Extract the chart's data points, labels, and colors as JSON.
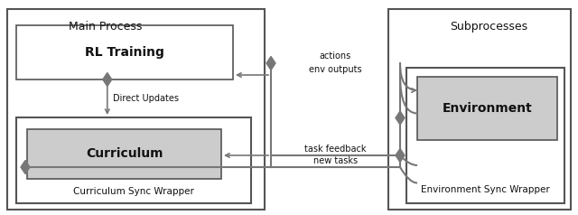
{
  "fig_width": 6.4,
  "fig_height": 2.38,
  "dpi": 100,
  "bg_color": "#ffffff",
  "box_color": "#ffffff",
  "box_edge": "#555555",
  "gray_fill": "#cccccc",
  "line_color": "#777777",
  "arrow_color": "#777777",
  "diamond_color": "#777777",
  "text_color": "#111111",
  "labels": {
    "main_process": "Main Process",
    "subprocesses": "Subprocesses",
    "rl_training": "RL Training",
    "curriculum": "Curriculum",
    "curriculum_sync": "Curriculum Sync Wrapper",
    "environment": "Environment",
    "env_sync": "Environment Sync Wrapper",
    "actions": "actions",
    "env_outputs": "env outputs",
    "direct_updates": "Direct Updates",
    "task_feedback": "task feedback",
    "new_tasks": "new tasks"
  }
}
